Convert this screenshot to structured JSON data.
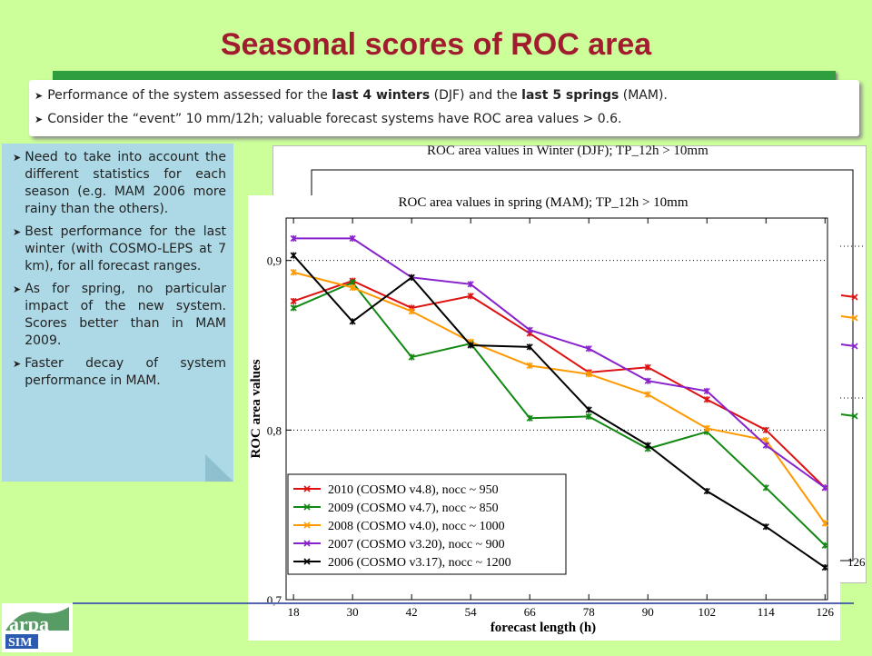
{
  "title": "Seasonal scores of ROC area",
  "top_bullets": [
    {
      "parts": [
        "Performance of the system assessed for the ",
        "last 4 winters",
        " (DJF) and the ",
        "last 5 springs",
        " (MAM)."
      ]
    },
    {
      "text": "Consider the “event” 10 mm/12h; valuable forecast systems have ROC area values > 0.6."
    }
  ],
  "left_bullets": [
    "Need to take into account the different statistics for each season (e.g. MAM 2006 more rainy than the others).",
    "Best performance for the last winter (with COSMO-LEPS at 7 km), for all forecast ranges.",
    "As for spring, no particular impact of the new system. Scores better than in MAM 2009.",
    "Faster decay of system performance in MAM."
  ],
  "back_chart": {
    "title": "ROC area values in Winter (DJF); TP_12h > 10mm",
    "visible_tick": "126",
    "partial_series": [
      {
        "color": "#dd1111",
        "values": [
          0.898
        ]
      },
      {
        "color": "#ff9900",
        "values": [
          0.886
        ]
      },
      {
        "color": "#8822cc",
        "values": [
          0.866
        ]
      },
      {
        "color": "#118811",
        "values": [
          0.822
        ]
      }
    ]
  },
  "chart_data": {
    "type": "line",
    "title": "ROC area values in spring (MAM); TP_12h > 10mm",
    "xlabel": "forecast length (h)",
    "ylabel": "ROC area values",
    "x": [
      18,
      30,
      42,
      54,
      66,
      78,
      90,
      102,
      114,
      126
    ],
    "ylim": [
      0.7,
      0.925
    ],
    "yticks": [
      "0,7",
      "0,8",
      "0,9"
    ],
    "ytick_values": [
      0.7,
      0.8,
      0.9
    ],
    "grid": "dotted horizontal at ticks",
    "legend_position": "bottom-left",
    "series": [
      {
        "name": "2010 (COSMO v4.8), nocc ~ 950",
        "color": "#dd1111",
        "values": [
          0.876,
          0.888,
          0.872,
          0.879,
          0.857,
          0.834,
          0.837,
          0.818,
          0.8,
          0.766
        ]
      },
      {
        "name": "2009 (COSMO v4.7), nocc ~ 850",
        "color": "#118811",
        "values": [
          0.872,
          0.887,
          0.843,
          0.851,
          0.807,
          0.808,
          0.789,
          0.799,
          0.766,
          0.732
        ]
      },
      {
        "name": "2008 (COSMO v4.0), nocc ~ 1000",
        "color": "#ff9900",
        "values": [
          0.893,
          0.884,
          0.87,
          0.852,
          0.838,
          0.833,
          0.821,
          0.801,
          0.794,
          0.745
        ]
      },
      {
        "name": "2007 (COSMO v3.20), nocc ~ 900",
        "color": "#8822cc",
        "values": [
          0.913,
          0.913,
          0.89,
          0.886,
          0.859,
          0.848,
          0.829,
          0.823,
          0.791,
          0.766
        ]
      },
      {
        "name": "2006 (COSMO v3.17), nocc ~ 1200",
        "color": "#000000",
        "values": [
          0.903,
          0.864,
          0.89,
          0.85,
          0.849,
          0.812,
          0.791,
          0.764,
          0.743,
          0.719
        ]
      }
    ]
  },
  "logo": {
    "text_top": "arpa",
    "text_bottom": "SIM",
    "color_primary": "#1e7a3c",
    "color_secondary": "#2a5bb0"
  }
}
